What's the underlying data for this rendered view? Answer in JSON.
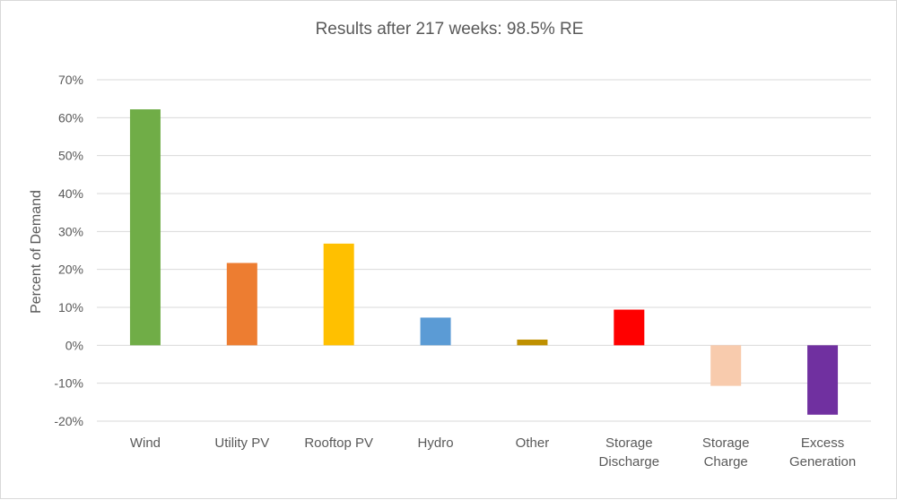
{
  "chart_data": {
    "type": "bar",
    "title": "Results after 217 weeks: 98.5% RE",
    "xlabel": "",
    "ylabel": "Percent of Demand",
    "ylim": [
      -0.2,
      0.7
    ],
    "ytick_values": [
      0.7,
      0.6,
      0.5,
      0.4,
      0.3,
      0.2,
      0.1,
      0.0,
      -0.1,
      -0.2
    ],
    "ytick_labels": [
      "70%",
      "60%",
      "50%",
      "40%",
      "30%",
      "20%",
      "10%",
      "0%",
      "-10%",
      "-20%"
    ],
    "grid": true,
    "legend": "none",
    "categories": [
      [
        "Wind"
      ],
      [
        "Utility PV"
      ],
      [
        "Rooftop PV"
      ],
      [
        "Hydro"
      ],
      [
        "Other"
      ],
      [
        "Storage",
        "Discharge"
      ],
      [
        "Storage",
        "Charge"
      ],
      [
        "Excess",
        "Generation"
      ]
    ],
    "values": [
      0.622,
      0.217,
      0.268,
      0.073,
      0.015,
      0.094,
      -0.107,
      -0.183
    ],
    "colors": [
      "#70ad47",
      "#ed7d31",
      "#ffc000",
      "#5b9bd5",
      "#bf9000",
      "#ff0000",
      "#f8cbad",
      "#7030a0"
    ]
  }
}
